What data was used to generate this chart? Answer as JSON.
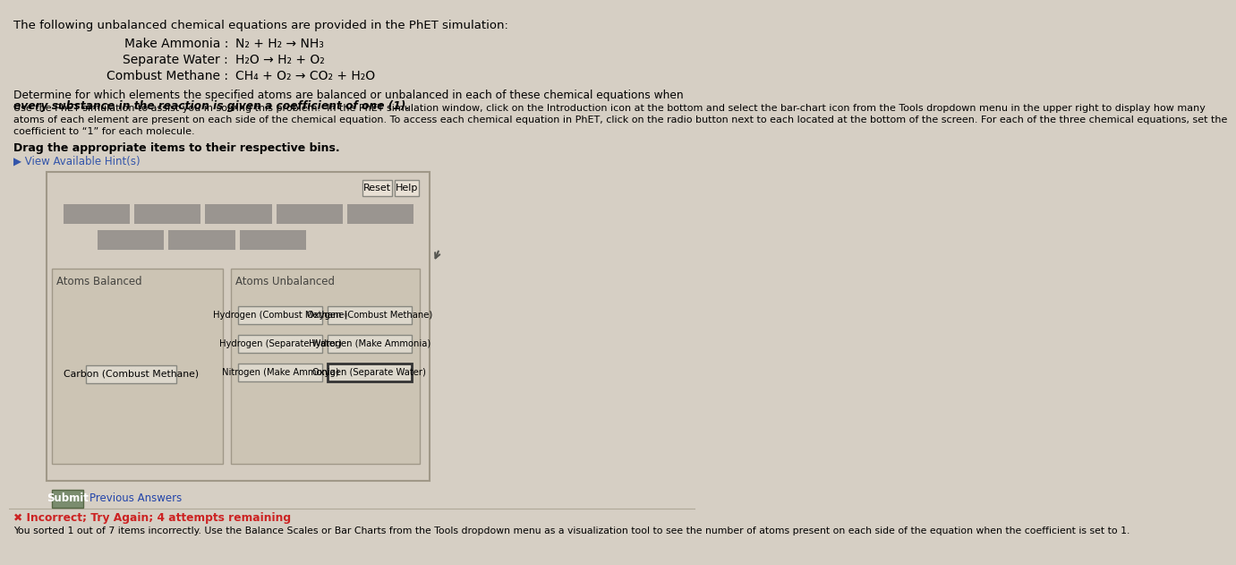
{
  "bg_color": "#d6cfc4",
  "title_text": "The following unbalanced chemical equations are provided in the PhET simulation:",
  "equations": [
    {
      "label": "Make Ammonia : ",
      "eq": "N₂ + H₂ → NH₃"
    },
    {
      "label": "Separate Water : ",
      "eq": "H₂O → H₂ + O₂"
    },
    {
      "label": "Combust Methane : ",
      "eq": "CH₄ + O₂ → CO₂ + H₂O"
    }
  ],
  "determine_text_normal": "Determine for which elements the specified atoms are balanced or unbalanced in each of these chemical equations when ",
  "determine_text_italic": "every substance in the reaction is given a coefficient of one (1).",
  "use_phet_lines": [
    "Use the PhET simulation to assist you in solving this problem.  In the PhET simulation window, click on the Introduction icon at the bottom and select the bar-chart icon from the Tools dropdown menu in the upper right to display how many",
    "atoms of each element are present on each side of the chemical equation. To access each chemical equation in PhET, click on the radio button next to each located at the bottom of the screen. For each of the three chemical equations, set the",
    "coefficient to “1” for each molecule."
  ],
  "drag_text": "Drag the appropriate items to their respective bins.",
  "hint_text": "▶ View Available Hint(s)",
  "reset_label": "Reset",
  "help_label": "Help",
  "atoms_balanced_label": "Atoms Balanced",
  "atoms_unbalanced_label": "Atoms Unbalanced",
  "balanced_items": [
    "Carbon (Combust Methane)"
  ],
  "unbalanced_items": [
    [
      "Hydrogen (Combust Methane)",
      "Oxygen (Combust Methane)"
    ],
    [
      "Hydrogen (Separate Water)",
      "Hydrogen (Make Ammonia)"
    ],
    [
      "Nitrogen (Make Ammonia)",
      "Oxygen (Separate Water)"
    ]
  ],
  "highlight_item": "Oxygen (Separate Water)",
  "submit_label": "Submit",
  "prev_answers_label": "Previous Answers",
  "incorrect_text": "✖ Incorrect; Try Again; 4 attempts remaining",
  "incorrect_subtext": "You sorted 1 out of 7 items incorrectly. Use the Balance Scales or Bar Charts from the Tools dropdown menu as a visualization tool to see the number of atoms present on each side of the equation when the coefficient is set to 1.",
  "submit_bg": "#7a8c6e",
  "submit_text_color": "white",
  "highlight_border": "#333333",
  "bar_color": "#9a9590",
  "box_fc": "#d4ccc0",
  "box_ec": "#a09888",
  "bin_fc": "#ccc4b4",
  "btn_fc": "#e8e0d4",
  "item_fc": "#ddd8cc",
  "item_ec": "#888880"
}
